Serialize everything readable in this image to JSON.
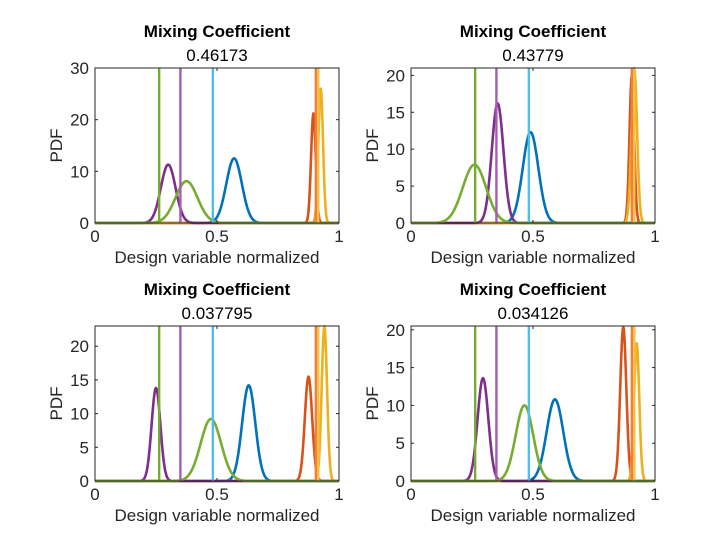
{
  "chart_data": [
    {
      "type": "line",
      "title": "Mixing Coefficient",
      "subtitle": "0.46173",
      "xlabel": "Design variable normalized",
      "ylabel": "PDF",
      "xlim": [
        0,
        1
      ],
      "ylim": [
        0,
        30
      ],
      "xticks": [
        0,
        0.5,
        1
      ],
      "yticks": [
        0,
        10,
        20,
        30
      ],
      "xtick_labels": [
        "0",
        "0.5",
        "1"
      ],
      "ytick_labels": [
        "0",
        "10",
        "20",
        "30"
      ],
      "series": [
        {
          "name": "blue",
          "color": "#0072BD",
          "mean": 0.57,
          "peak": 12.5,
          "sd": 0.032
        },
        {
          "name": "orange",
          "color": "#D95319",
          "mean": 0.895,
          "peak": 21.2,
          "sd": 0.0095
        },
        {
          "name": "yellow",
          "color": "#EDB120",
          "mean": 0.925,
          "peak": 26.0,
          "sd": 0.0095
        },
        {
          "name": "purple",
          "color": "#7E2F8E",
          "mean": 0.3,
          "peak": 11.3,
          "sd": 0.03
        },
        {
          "name": "green",
          "color": "#77AC30",
          "mean": 0.375,
          "peak": 8.1,
          "sd": 0.045
        }
      ],
      "vlines": [
        {
          "color": "#77AC30",
          "x": 0.263
        },
        {
          "color": "#A65DB3",
          "x": 0.35
        },
        {
          "color": "#4DBEEE",
          "x": 0.483
        },
        {
          "color": "#F08040",
          "x": 0.905
        },
        {
          "color": "#F5C040",
          "x": 0.915
        }
      ]
    },
    {
      "type": "line",
      "title": "Mixing Coefficient",
      "subtitle": "0.43779",
      "xlabel": "Design variable normalized",
      "ylabel": "PDF",
      "xlim": [
        0,
        1
      ],
      "ylim": [
        0,
        21
      ],
      "xticks": [
        0,
        0.5,
        1
      ],
      "yticks": [
        0,
        5,
        10,
        15,
        20
      ],
      "xtick_labels": [
        "0",
        "0.5",
        "1"
      ],
      "ytick_labels": [
        "0",
        "5",
        "10",
        "15",
        "20"
      ],
      "series": [
        {
          "name": "blue",
          "color": "#0072BD",
          "mean": 0.49,
          "peak": 12.3,
          "sd": 0.032
        },
        {
          "name": "orange",
          "color": "#D95319",
          "mean": 0.905,
          "peak": 20.0,
          "sd": 0.0095
        },
        {
          "name": "yellow",
          "color": "#EDB120",
          "mean": 0.915,
          "peak": 21.0,
          "sd": 0.0115
        },
        {
          "name": "purple",
          "color": "#7E2F8E",
          "mean": 0.355,
          "peak": 16.2,
          "sd": 0.024
        },
        {
          "name": "green",
          "color": "#77AC30",
          "mean": 0.26,
          "peak": 7.9,
          "sd": 0.048
        }
      ],
      "vlines": [
        {
          "color": "#77AC30",
          "x": 0.263
        },
        {
          "color": "#A65DB3",
          "x": 0.35
        },
        {
          "color": "#4DBEEE",
          "x": 0.483
        },
        {
          "color": "#F08040",
          "x": 0.905
        },
        {
          "color": "#F5C040",
          "x": 0.915
        }
      ]
    },
    {
      "type": "line",
      "title": "Mixing Coefficient",
      "subtitle": "0.037795",
      "xlabel": "Design variable normalized",
      "ylabel": "PDF",
      "xlim": [
        0,
        1
      ],
      "ylim": [
        0,
        23
      ],
      "xticks": [
        0,
        0.5,
        1
      ],
      "yticks": [
        0,
        5,
        10,
        15,
        20
      ],
      "xtick_labels": [
        "0",
        "0.5",
        "1"
      ],
      "ytick_labels": [
        "0",
        "5",
        "10",
        "15",
        "20"
      ],
      "series": [
        {
          "name": "blue",
          "color": "#0072BD",
          "mean": 0.63,
          "peak": 14.2,
          "sd": 0.027
        },
        {
          "name": "orange",
          "color": "#D95319",
          "mean": 0.875,
          "peak": 15.5,
          "sd": 0.015
        },
        {
          "name": "yellow",
          "color": "#EDB120",
          "mean": 0.94,
          "peak": 23.0,
          "sd": 0.011
        },
        {
          "name": "purple",
          "color": "#7E2F8E",
          "mean": 0.25,
          "peak": 13.8,
          "sd": 0.018
        },
        {
          "name": "green",
          "color": "#77AC30",
          "mean": 0.475,
          "peak": 9.2,
          "sd": 0.042
        }
      ],
      "vlines": [
        {
          "color": "#77AC30",
          "x": 0.263
        },
        {
          "color": "#A65DB3",
          "x": 0.35
        },
        {
          "color": "#4DBEEE",
          "x": 0.483
        },
        {
          "color": "#F08040",
          "x": 0.905
        },
        {
          "color": "#F5C040",
          "x": 0.915
        }
      ]
    },
    {
      "type": "line",
      "title": "Mixing Coefficient",
      "subtitle": "0.034126",
      "xlabel": "Design variable normalized",
      "ylabel": "PDF",
      "xlim": [
        0,
        1
      ],
      "ylim": [
        0,
        20.5
      ],
      "xticks": [
        0,
        0.5,
        1
      ],
      "yticks": [
        0,
        5,
        10,
        15,
        20
      ],
      "xtick_labels": [
        "0",
        "0.5",
        "1"
      ],
      "ytick_labels": [
        "0",
        "5",
        "10",
        "15",
        "20"
      ],
      "series": [
        {
          "name": "blue",
          "color": "#0072BD",
          "mean": 0.59,
          "peak": 10.8,
          "sd": 0.034
        },
        {
          "name": "orange",
          "color": "#D95319",
          "mean": 0.87,
          "peak": 20.4,
          "sd": 0.0125
        },
        {
          "name": "yellow",
          "color": "#EDB120",
          "mean": 0.925,
          "peak": 18.2,
          "sd": 0.0105
        },
        {
          "name": "purple",
          "color": "#7E2F8E",
          "mean": 0.295,
          "peak": 13.6,
          "sd": 0.022
        },
        {
          "name": "green",
          "color": "#77AC30",
          "mean": 0.465,
          "peak": 10.0,
          "sd": 0.036
        }
      ],
      "vlines": [
        {
          "color": "#77AC30",
          "x": 0.263
        },
        {
          "color": "#A65DB3",
          "x": 0.35
        },
        {
          "color": "#4DBEEE",
          "x": 0.483
        },
        {
          "color": "#F08040",
          "x": 0.905
        },
        {
          "color": "#F5C040",
          "x": 0.915
        }
      ]
    }
  ]
}
